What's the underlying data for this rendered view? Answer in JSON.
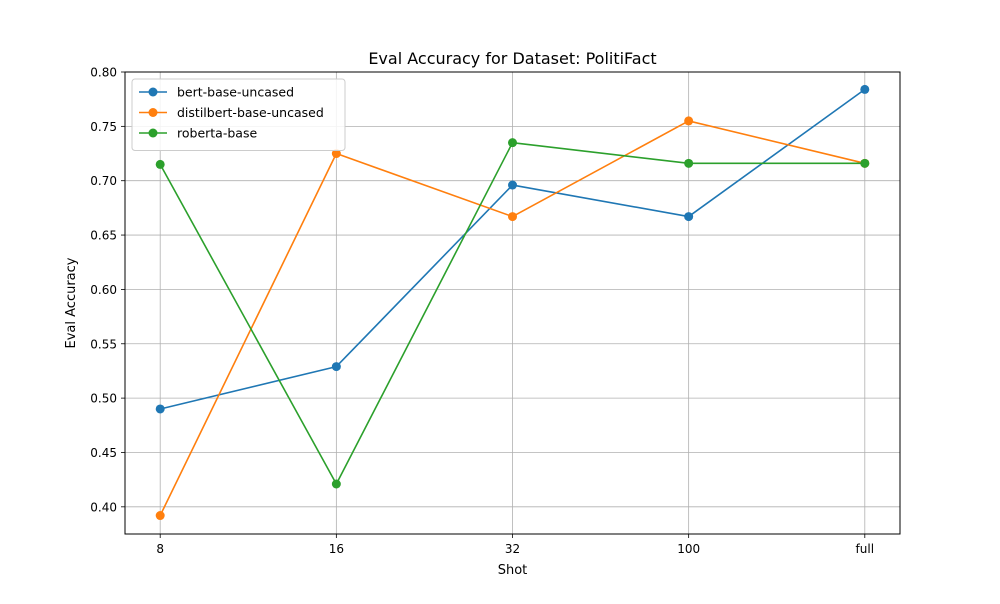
{
  "chart_data": {
    "type": "line",
    "title": "Eval Accuracy for Dataset: PolitiFact",
    "xlabel": "Shot",
    "ylabel": "Eval Accuracy",
    "categories": [
      "8",
      "16",
      "32",
      "100",
      "full"
    ],
    "ylim": [
      0.375,
      0.8
    ],
    "yticks": [
      0.4,
      0.45,
      0.5,
      0.55,
      0.6,
      0.65,
      0.7,
      0.75,
      0.8
    ],
    "ytick_labels": [
      "0.40",
      "0.45",
      "0.50",
      "0.55",
      "0.60",
      "0.65",
      "0.70",
      "0.75",
      "0.80"
    ],
    "grid": true,
    "legend_position": "top-left",
    "series": [
      {
        "name": "bert-base-uncased",
        "color": "#1f77b4",
        "values": [
          0.49,
          0.529,
          0.696,
          0.667,
          0.784
        ]
      },
      {
        "name": "distilbert-base-uncased",
        "color": "#ff7f0e",
        "values": [
          0.392,
          0.725,
          0.667,
          0.755,
          0.716
        ]
      },
      {
        "name": "roberta-base",
        "color": "#2ca02c",
        "values": [
          0.715,
          0.421,
          0.735,
          0.716,
          0.716
        ]
      }
    ]
  }
}
